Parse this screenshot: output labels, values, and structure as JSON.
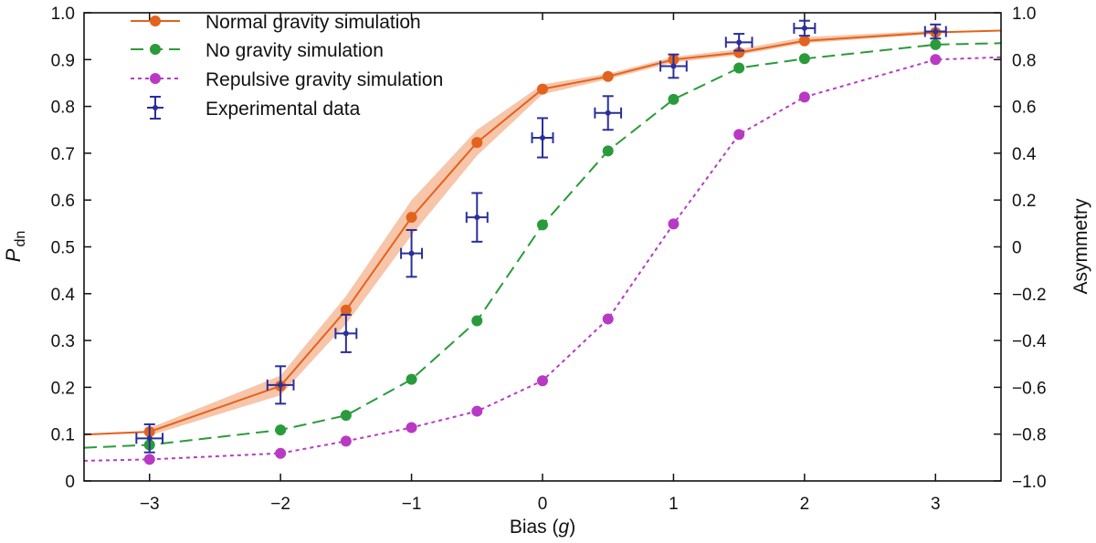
{
  "chart_data": {
    "type": "line",
    "xlabel_main": "Bias (",
    "xlabel_italic": "g",
    "xlabel_end": ")",
    "ylabel_main": "P",
    "ylabel_sub": "dn",
    "y2label": "Asymmetry",
    "xlim": [
      -3.5,
      3.5
    ],
    "ylim": [
      0,
      1.0
    ],
    "y2lim": [
      -1.0,
      1.0
    ],
    "x_ticks": [
      -3,
      -2,
      -1,
      0,
      1,
      2,
      3
    ],
    "x_tick_labels": [
      "−3",
      "−2",
      "−1",
      "0",
      "1",
      "2",
      "3"
    ],
    "y_ticks": [
      0,
      0.1,
      0.2,
      0.3,
      0.4,
      0.5,
      0.6,
      0.7,
      0.8,
      0.9,
      1.0
    ],
    "y_tick_labels": [
      "0",
      "0.1",
      "0.2",
      "0.3",
      "0.4",
      "0.5",
      "0.6",
      "0.7",
      "0.8",
      "0.9",
      "1.0"
    ],
    "y2_ticks": [
      -1.0,
      -0.8,
      -0.6,
      -0.4,
      -0.2,
      0,
      0.2,
      0.4,
      0.6,
      0.8,
      1.0
    ],
    "y2_tick_labels": [
      "−1.0",
      "−0.8",
      "−0.6",
      "−0.4",
      "−0.2",
      "0",
      "0.2",
      "0.4",
      "0.6",
      "0.8",
      "1.0"
    ],
    "legend_position": "top-left",
    "series": [
      {
        "name": "Normal gravity simulation",
        "color": "#e2631d",
        "dash": "solid",
        "x": [
          -3,
          -2,
          -1.5,
          -1,
          -0.5,
          0,
          0.5,
          1,
          1.5,
          2,
          3
        ],
        "y": [
          0.105,
          0.203,
          0.365,
          0.563,
          0.723,
          0.837,
          0.864,
          0.9,
          0.915,
          0.94,
          0.958
        ],
        "line_ends": [
          0.099,
          0.962
        ],
        "band_lower": [
          0.097,
          0.183,
          0.335,
          0.525,
          0.695,
          0.826,
          0.858,
          0.894,
          0.91,
          0.935,
          0.955
        ],
        "band_upper": [
          0.113,
          0.225,
          0.395,
          0.6,
          0.75,
          0.847,
          0.87,
          0.906,
          0.922,
          0.948,
          0.962
        ]
      },
      {
        "name": "No gravity simulation",
        "color": "#2a9b3a",
        "dash": "dashed",
        "x": [
          -3,
          -2,
          -1.5,
          -1,
          -0.5,
          0,
          0.5,
          1,
          1.5,
          2,
          3
        ],
        "y": [
          0.077,
          0.109,
          0.14,
          0.217,
          0.342,
          0.547,
          0.705,
          0.815,
          0.882,
          0.902,
          0.932
        ],
        "line_ends": [
          0.071,
          0.935
        ]
      },
      {
        "name": "Repulsive gravity simulation",
        "color": "#b83ac4",
        "dash": "dotted",
        "x": [
          -3,
          -2,
          -1.5,
          -1,
          -0.5,
          0,
          0.5,
          1,
          1.5,
          2,
          3
        ],
        "y": [
          0.046,
          0.059,
          0.085,
          0.114,
          0.149,
          0.214,
          0.346,
          0.549,
          0.74,
          0.82,
          0.9
        ],
        "line_ends": [
          0.043,
          0.905
        ]
      },
      {
        "name": "Experimental data",
        "color": "#2a2f9a",
        "type": "errorbar",
        "x": [
          -3,
          -2,
          -1.5,
          -1,
          -0.5,
          0,
          0.5,
          1,
          1.5,
          2,
          3
        ],
        "y": [
          0.091,
          0.205,
          0.315,
          0.486,
          0.563,
          0.733,
          0.786,
          0.886,
          0.937,
          0.967,
          0.96
        ],
        "y_err": [
          0.03,
          0.04,
          0.04,
          0.05,
          0.052,
          0.042,
          0.036,
          0.025,
          0.018,
          0.016,
          0.015
        ],
        "x_err": [
          0.1,
          0.1,
          0.08,
          0.08,
          0.08,
          0.08,
          0.1,
          0.1,
          0.1,
          0.08,
          0.08
        ]
      }
    ]
  }
}
